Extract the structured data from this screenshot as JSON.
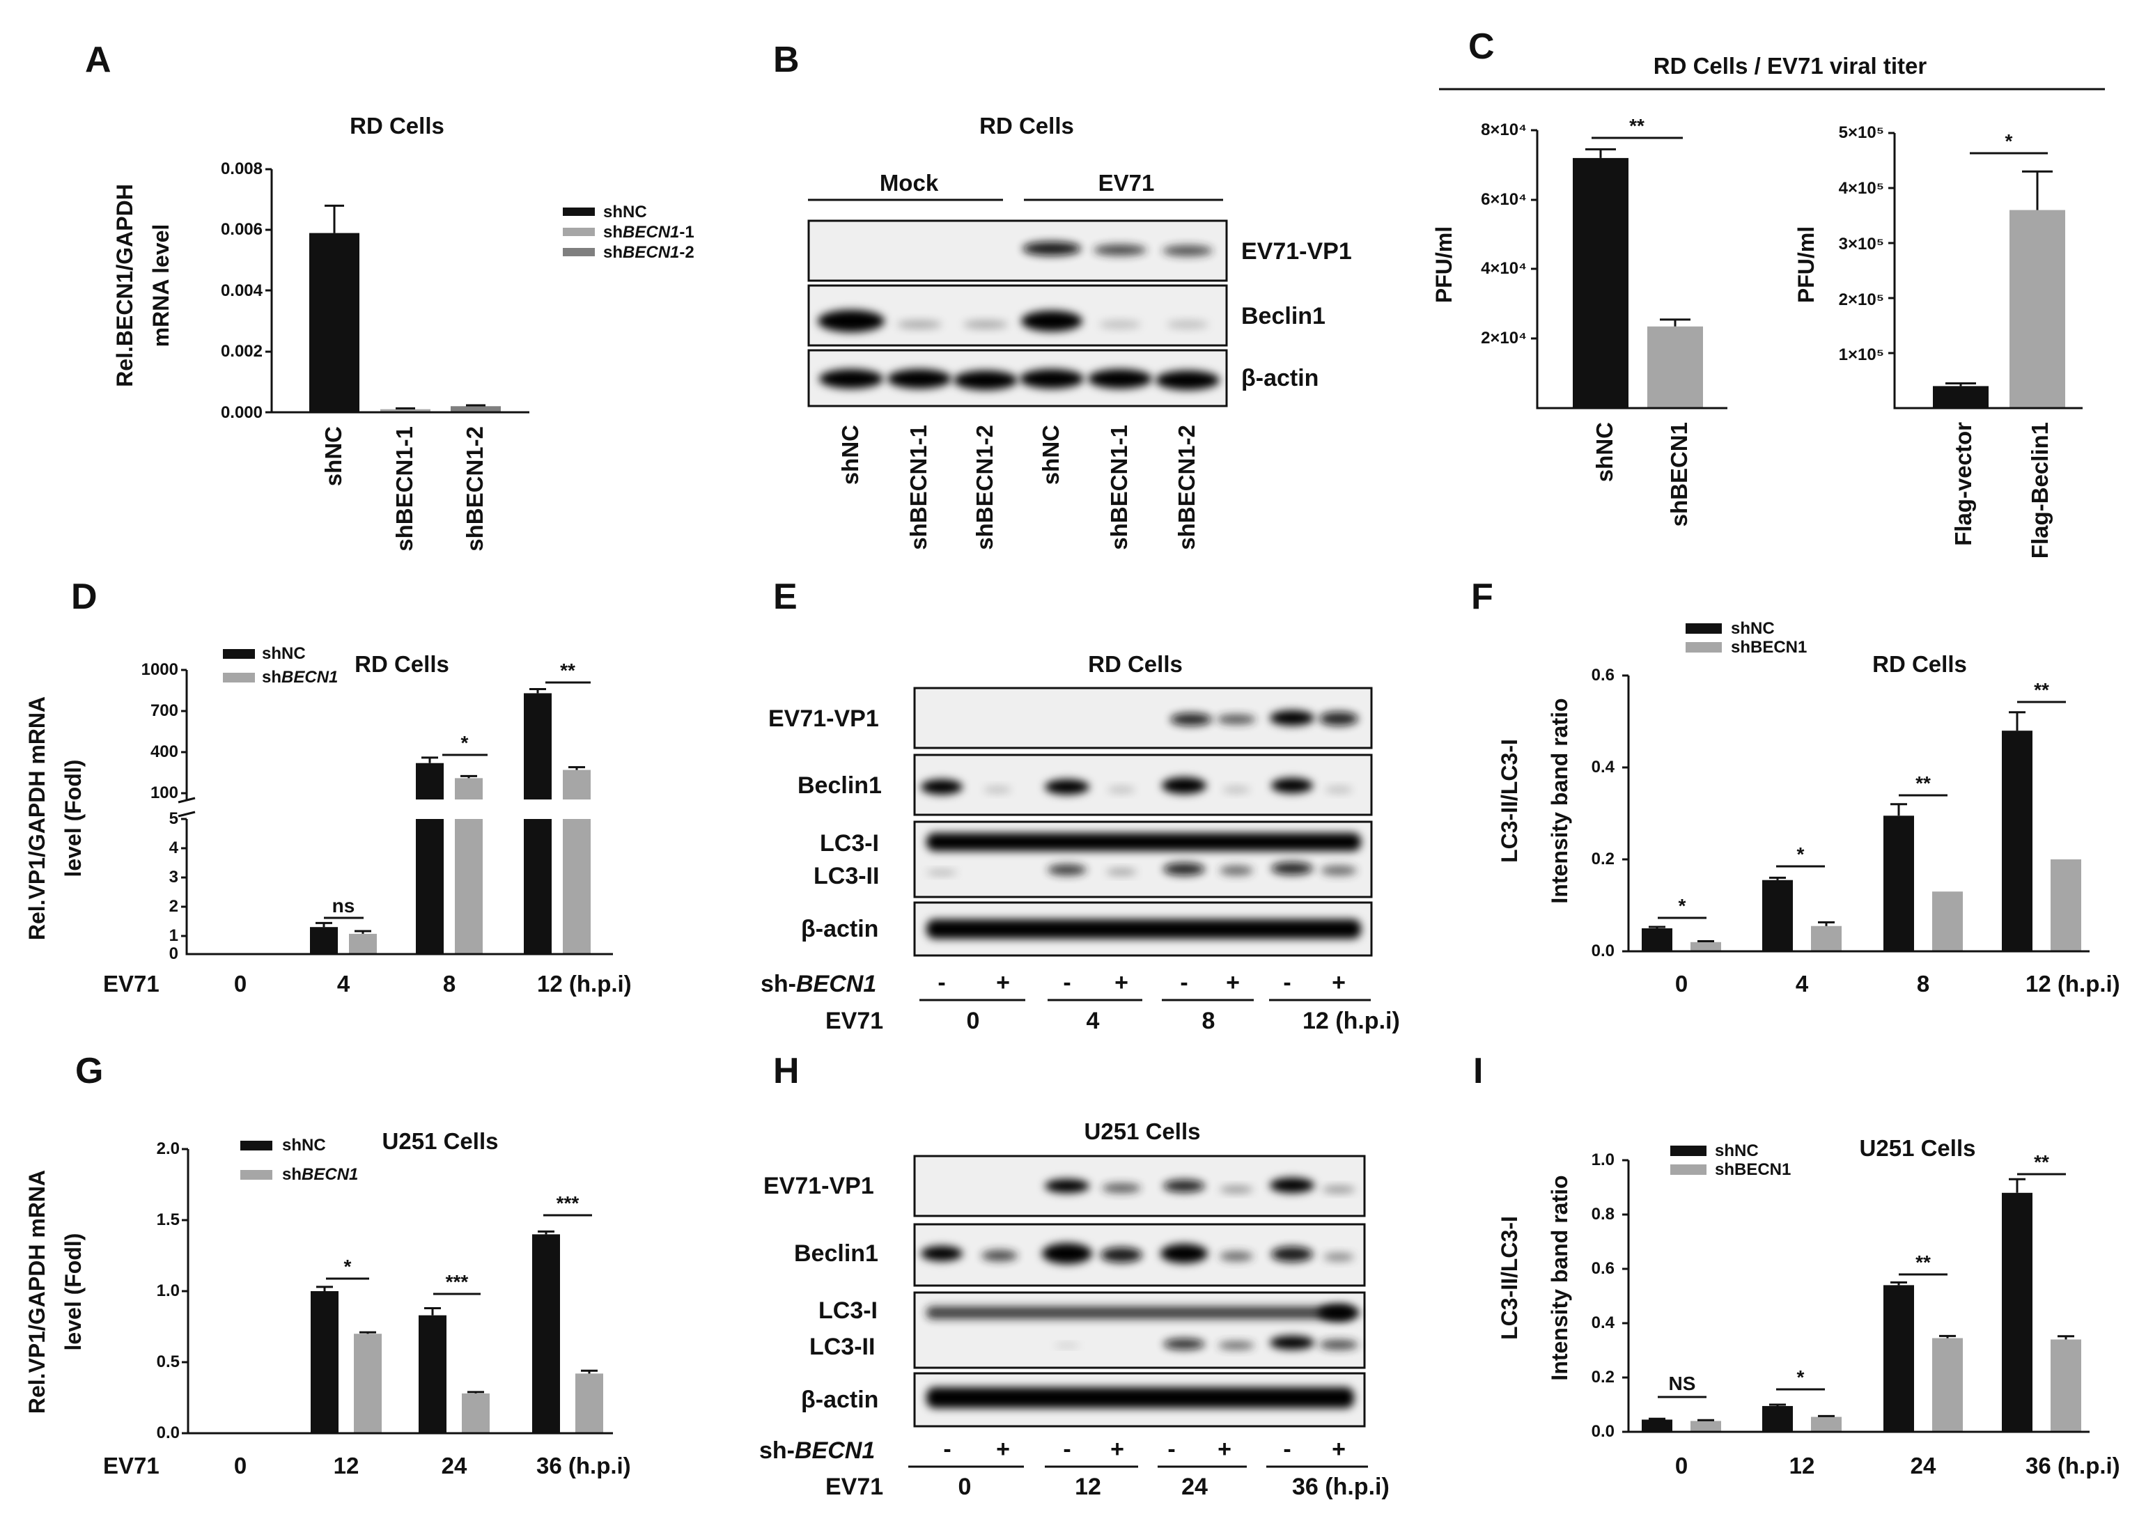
{
  "colors": {
    "shNC": "#111111",
    "shBECN1_1": "#a6a6a6",
    "shBECN1_2": "#7f7f7f",
    "shBECN1": "#a6a6a6"
  },
  "panels": {
    "A": {
      "label": "A",
      "title": "RD Cells",
      "ylabel_1": "Rel.BECN1/GAPDH",
      "ylabel_2": "mRNA level",
      "yticks": [
        "0.008",
        "0.006",
        "0.004",
        "0.002",
        "0.000"
      ],
      "legend": [
        {
          "prefix": "sh",
          "name": "NC",
          "suffix": "",
          "color": "#111111"
        },
        {
          "prefix": "sh",
          "name": "BECN1",
          "suffix": "-1",
          "color": "#a6a6a6"
        },
        {
          "prefix": "sh",
          "name": "BECN1",
          "suffix": "-2",
          "color": "#7f7f7f"
        }
      ]
    },
    "B": {
      "label": "B",
      "title": "RD Cells",
      "group_mock": "Mock",
      "group_ev71": "EV71",
      "rows": [
        "EV71-VP1",
        "Beclin1",
        "β-actin"
      ],
      "lanes": [
        "shNC",
        "shBECN1-1",
        "shBECN1-2",
        "shNC",
        "shBECN1-1",
        "shBECN1-2"
      ]
    },
    "C": {
      "label": "C",
      "title": "RD Cells / EV71 viral titer",
      "ylabel": "PFU/ml",
      "left_yticks": [
        "8×10⁴",
        "6×10⁴",
        "4×10⁴",
        "2×10⁴"
      ],
      "right_yticks": [
        "5×10⁵",
        "4×10⁵",
        "3×10⁵",
        "2×10⁵",
        "1×10⁵"
      ],
      "sig_left": "**",
      "sig_right": "*"
    },
    "D": {
      "label": "D",
      "title": "RD Cells",
      "ylabel_1": "Rel.VP1/GAPDH mRNA",
      "ylabel_2": "level (Fodl)",
      "yticks_upper": [
        "1000",
        "700",
        "400",
        "100"
      ],
      "yticks_lower": [
        "5",
        "4",
        "3",
        "2",
        "1",
        "0"
      ],
      "xaxis_name": "EV71",
      "legend_shNC": "shNC",
      "legend_sh_prefix": "sh",
      "legend_sh_name": "BECN1",
      "sig": [
        "ns",
        "*",
        "**"
      ]
    },
    "E": {
      "label": "E",
      "title": "RD Cells",
      "rows": [
        "EV71-VP1",
        "Beclin1",
        "LC3-I",
        "LC3-II",
        "β-actin"
      ],
      "sh_prefix": "sh-",
      "sh_name": "BECN1",
      "signs": [
        "-",
        "+",
        "-",
        "+",
        "-",
        "+",
        "-",
        "+"
      ],
      "ev71": "EV71",
      "times": [
        "0",
        "4",
        "8",
        "12 (h.p.i)"
      ]
    },
    "F": {
      "label": "F",
      "title": "RD Cells",
      "ylabel_1": "LC3-II/LC3-I",
      "ylabel_2": "Intensity band ratio",
      "yticks": [
        "0.6",
        "0.4",
        "0.2",
        "0.0"
      ],
      "legend_shNC": "shNC",
      "legend_shBECN1": "shBECN1",
      "sig": [
        "*",
        "*",
        "**",
        "**"
      ]
    },
    "G": {
      "label": "G",
      "title": "U251 Cells",
      "ylabel_1": "Rel.VP1/GAPDH mRNA",
      "ylabel_2": "level (Fodl)",
      "yticks": [
        "2.0",
        "1.5",
        "1.0",
        "0.5",
        "0.0"
      ],
      "xaxis_name": "EV71",
      "legend_shNC": "shNC",
      "legend_sh_prefix": "sh",
      "legend_sh_name": "BECN1",
      "sig": [
        "*",
        "***",
        "***"
      ]
    },
    "H": {
      "label": "H",
      "title": "U251 Cells",
      "rows": [
        "EV71-VP1",
        "Beclin1",
        "LC3-I",
        "LC3-II",
        "β-actin"
      ],
      "sh_prefix": "sh-",
      "sh_name": "BECN1",
      "signs": [
        "-",
        "+",
        "-",
        "+",
        "-",
        "+",
        "-",
        "+"
      ],
      "ev71": "EV71",
      "times": [
        "0",
        "12",
        "24",
        "36 (h.p.i)"
      ]
    },
    "I": {
      "label": "I",
      "title": "U251 Cells",
      "ylabel_1": "LC3-II/LC3-I",
      "ylabel_2": "Intensity band ratio",
      "yticks": [
        "1.0",
        "0.8",
        "0.6",
        "0.4",
        "0.2",
        "0.0"
      ],
      "legend_shNC": "shNC",
      "legend_shBECN1": "shBECN1",
      "sig": [
        "NS",
        "*",
        "**",
        "**"
      ]
    }
  },
  "chart_data": [
    {
      "panel": "A",
      "type": "bar",
      "title": "RD Cells",
      "ylabel": "Rel.BECN1/GAPDH mRNA level",
      "categories": [
        "shNC",
        "shBECN1-1",
        "shBECN1-2"
      ],
      "values": [
        0.0059,
        0.0001,
        0.0002
      ],
      "errors": [
        0.0009,
        3e-05,
        3e-05
      ],
      "ylim": [
        0,
        0.008
      ]
    },
    {
      "panel": "C-left",
      "type": "bar",
      "ylabel": "PFU/ml",
      "categories": [
        "shNC",
        "shBECN1"
      ],
      "values": [
        72000,
        23500
      ],
      "errors": [
        2500,
        2000
      ],
      "ylim": [
        0,
        80000
      ]
    },
    {
      "panel": "C-right",
      "type": "bar",
      "ylabel": "PFU/ml",
      "categories": [
        "Flag-vector",
        "Flag-Beclin1"
      ],
      "values": [
        40000,
        360000
      ],
      "errors": [
        5000,
        70000
      ],
      "ylim": [
        0,
        500000
      ]
    },
    {
      "panel": "D",
      "type": "bar",
      "title": "RD Cells",
      "ylabel": "Rel.VP1/GAPDH mRNA level (Fodl)",
      "categories": [
        "0",
        "4",
        "8",
        "12 (h.p.i)"
      ],
      "series": [
        {
          "name": "shNC",
          "values": [
            0,
            1.0,
            320,
            830
          ],
          "errors": [
            0,
            0.15,
            40,
            30
          ]
        },
        {
          "name": "shBECN1",
          "values": [
            0,
            0.75,
            210,
            270
          ],
          "errors": [
            0,
            0.1,
            15,
            20
          ]
        }
      ]
    },
    {
      "panel": "F",
      "type": "bar",
      "title": "RD Cells",
      "ylabel": "LC3-II/LC3-I Intensity band ratio",
      "categories": [
        "0",
        "4",
        "8",
        "12 (h.p.i)"
      ],
      "ylim": [
        0,
        0.6
      ],
      "series": [
        {
          "name": "shNC",
          "values": [
            0.05,
            0.155,
            0.295,
            0.48
          ],
          "errors": [
            0.003,
            0.005,
            0.025,
            0.04
          ]
        },
        {
          "name": "shBECN1",
          "values": [
            0.02,
            0.055,
            0.13,
            0.2
          ],
          "errors": [
            0.002,
            0.008,
            0,
            0
          ]
        }
      ]
    },
    {
      "panel": "G",
      "type": "bar",
      "title": "U251 Cells",
      "ylabel": "Rel.VP1/GAPDH mRNA level (Fodl)",
      "categories": [
        "0",
        "12",
        "24",
        "36 (h.p.i)"
      ],
      "ylim": [
        0,
        2.0
      ],
      "series": [
        {
          "name": "shNC",
          "values": [
            0,
            1.0,
            0.83,
            1.4
          ],
          "errors": [
            0,
            0.03,
            0.05,
            0.02
          ]
        },
        {
          "name": "shBECN1",
          "values": [
            0,
            0.7,
            0.28,
            0.42
          ],
          "errors": [
            0,
            0.01,
            0.01,
            0.02
          ]
        }
      ]
    },
    {
      "panel": "I",
      "type": "bar",
      "title": "U251 Cells",
      "ylabel": "LC3-II/LC3-I Intensity band ratio",
      "categories": [
        "0",
        "12",
        "24",
        "36 (h.p.i)"
      ],
      "ylim": [
        0,
        1.0
      ],
      "series": [
        {
          "name": "shNC",
          "values": [
            0.045,
            0.095,
            0.54,
            0.88
          ],
          "errors": [
            0.003,
            0.005,
            0.01,
            0.05
          ]
        },
        {
          "name": "shBECN1",
          "values": [
            0.04,
            0.055,
            0.345,
            0.34
          ],
          "errors": [
            0.003,
            0.003,
            0.008,
            0.012
          ]
        }
      ]
    }
  ]
}
